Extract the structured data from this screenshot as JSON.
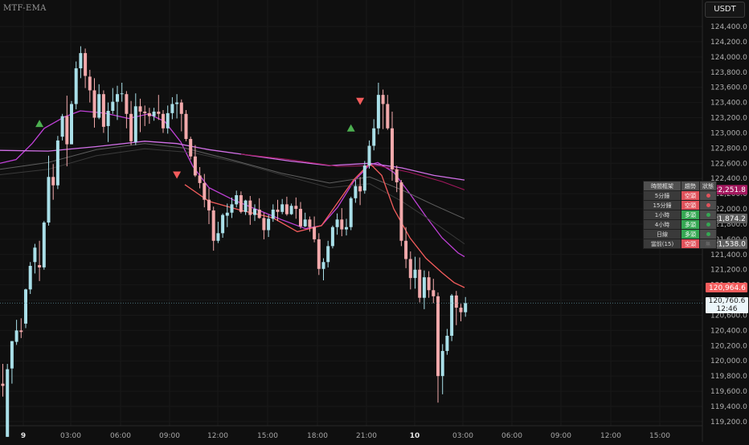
{
  "chart_data": {
    "type": "candlestick",
    "title": "MTF-EMA",
    "currency": "USDT",
    "y_ticks": [
      "124,400.0",
      "124,200.0",
      "124,000.0",
      "123,800.0",
      "123,600.0",
      "123,400.0",
      "123,200.0",
      "123,000.0",
      "122,800.0",
      "122,600.0",
      "122,400.0",
      "122,200.0",
      "122,000.0",
      "121,800.0",
      "121,600.0",
      "121,400.0",
      "121,200.0",
      "121,000.0",
      "120,800.0",
      "120,600.0",
      "120,400.0",
      "120,200.0",
      "120,000.0",
      "119,800.0",
      "119,600.0",
      "119,400.0",
      "119,200.0"
    ],
    "x_ticks": [
      "9",
      "03:00",
      "06:00",
      "09:00",
      "12:00",
      "15:00",
      "18:00",
      "21:00",
      "10",
      "03:00",
      "06:00",
      "09:00",
      "12:00",
      "15:00"
    ],
    "ylim": [
      119100,
      124550
    ],
    "last_price": "120,760.6",
    "countdown": "12:46",
    "price_labels": [
      {
        "text": "122,251.8",
        "value": 122251.8,
        "color": "#a3185e"
      },
      {
        "text": "121,874.2",
        "value": 121874.2,
        "color": "#5f5f5f"
      },
      {
        "text": "121,538.0",
        "value": 121538.0,
        "color": "#5f5f5f"
      },
      {
        "text": "120,964.6",
        "value": 120964.6,
        "color": "#f35c5c"
      }
    ],
    "ema_series": [
      {
        "color": "#bf40d6",
        "points": [
          [
            0,
            122600
          ],
          [
            20,
            122650
          ],
          [
            40,
            122860
          ],
          [
            55,
            123060
          ],
          [
            80,
            123210
          ],
          [
            100,
            123290
          ],
          [
            130,
            123260
          ],
          [
            160,
            123190
          ],
          [
            185,
            123250
          ],
          [
            205,
            123150
          ],
          [
            225,
            122880
          ],
          [
            240,
            122560
          ],
          [
            260,
            122280
          ],
          [
            290,
            122120
          ],
          [
            320,
            121990
          ],
          [
            350,
            121860
          ],
          [
            380,
            121740
          ],
          [
            400,
            121780
          ],
          [
            420,
            122020
          ],
          [
            440,
            122360
          ],
          [
            460,
            122580
          ],
          [
            470,
            122610
          ],
          [
            490,
            122480
          ],
          [
            510,
            122200
          ],
          [
            530,
            121900
          ],
          [
            550,
            121620
          ],
          [
            570,
            121420
          ],
          [
            578,
            121370
          ]
        ]
      },
      {
        "color": "#d270e8",
        "points": [
          [
            0,
            122770
          ],
          [
            60,
            122760
          ],
          [
            120,
            122820
          ],
          [
            180,
            122890
          ],
          [
            220,
            122860
          ],
          [
            260,
            122780
          ],
          [
            300,
            122720
          ],
          [
            360,
            122630
          ],
          [
            410,
            122570
          ],
          [
            460,
            122600
          ],
          [
            500,
            122540
          ],
          [
            540,
            122440
          ],
          [
            578,
            122380
          ]
        ]
      },
      {
        "color": "#a3185e",
        "points": [
          [
            300,
            122720
          ],
          [
            360,
            122650
          ],
          [
            420,
            122560
          ],
          [
            470,
            122570
          ],
          [
            510,
            122480
          ],
          [
            550,
            122360
          ],
          [
            578,
            122250
          ]
        ]
      },
      {
        "color": "#5f5f5f",
        "points": [
          [
            0,
            122520
          ],
          [
            60,
            122610
          ],
          [
            120,
            122780
          ],
          [
            180,
            122860
          ],
          [
            230,
            122800
          ],
          [
            290,
            122640
          ],
          [
            350,
            122470
          ],
          [
            410,
            122340
          ],
          [
            460,
            122420
          ],
          [
            500,
            122250
          ],
          [
            540,
            122050
          ],
          [
            578,
            121870
          ]
        ]
      },
      {
        "color": "#3a3a3a",
        "points": [
          [
            0,
            122450
          ],
          [
            60,
            122520
          ],
          [
            120,
            122700
          ],
          [
            180,
            122790
          ],
          [
            240,
            122740
          ],
          [
            300,
            122600
          ],
          [
            360,
            122420
          ],
          [
            410,
            122280
          ],
          [
            460,
            122330
          ],
          [
            500,
            122100
          ],
          [
            540,
            121820
          ],
          [
            578,
            121540
          ]
        ]
      },
      {
        "color": "#f35c5c",
        "points": [
          [
            230,
            122320
          ],
          [
            260,
            122100
          ],
          [
            300,
            121980
          ],
          [
            340,
            121880
          ],
          [
            370,
            121700
          ],
          [
            400,
            121780
          ],
          [
            420,
            122080
          ],
          [
            440,
            122380
          ],
          [
            460,
            122600
          ],
          [
            475,
            122440
          ],
          [
            490,
            122000
          ],
          [
            510,
            121620
          ],
          [
            530,
            121350
          ],
          [
            550,
            121160
          ],
          [
            565,
            121030
          ],
          [
            578,
            120965
          ]
        ]
      }
    ],
    "candles": [
      [
        119700.0,
        119960.0,
        119530.0,
        119670.0
      ],
      [
        119000.0,
        119960.0,
        119000.0,
        119890.0
      ],
      [
        119900.0,
        120260.0,
        119700.0,
        120260.0
      ],
      [
        120250.0,
        120540.0,
        120210.0,
        120400.0
      ],
      [
        120400.0,
        120560.0,
        120300.0,
        120380.0
      ],
      [
        120490.0,
        120950.0,
        120430.0,
        120940.0
      ],
      [
        120940.0,
        121300.0,
        120880.0,
        121250.0
      ],
      [
        121300.0,
        121540.0,
        121150.0,
        121490.0
      ],
      [
        121260.0,
        121580.0,
        121050.0,
        121230.0
      ],
      [
        121230.0,
        121840.0,
        121200.0,
        121820.0
      ],
      [
        121820.0,
        122700.0,
        121780.0,
        122420.0
      ],
      [
        122420.0,
        122590.0,
        122120.0,
        122310.0
      ],
      [
        122310.0,
        122960.0,
        122260.0,
        122900.0
      ],
      [
        122950.0,
        123250.0,
        122900.0,
        123220.0
      ],
      [
        123220.0,
        123490.0,
        122560.0,
        122850.0
      ],
      [
        122850.0,
        123420.0,
        122850.0,
        123380.0
      ],
      [
        123380.0,
        123940.0,
        123310.0,
        123850.0
      ],
      [
        123850.0,
        124140.0,
        123720.0,
        124050.0
      ],
      [
        124050.0,
        124110.0,
        123590.0,
        123750.0
      ],
      [
        123740.0,
        123830.0,
        123400.0,
        123560.0
      ],
      [
        123560.0,
        123720.0,
        123070.0,
        123200.0
      ],
      [
        123200.0,
        123640.0,
        123180.0,
        123510.0
      ],
      [
        123510.0,
        123560.0,
        123000.0,
        123080.0
      ],
      [
        123090.0,
        123400.0,
        122880.0,
        123290.0
      ],
      [
        123290.0,
        123590.0,
        123250.0,
        123410.0
      ],
      [
        123410.0,
        123620.0,
        123170.0,
        123510.0
      ],
      [
        123510.0,
        123660.0,
        123410.0,
        123520.0
      ],
      [
        123510.0,
        123550.0,
        123060.0,
        123250.0
      ],
      [
        123250.0,
        123420.0,
        122840.0,
        122890.0
      ],
      [
        122880.0,
        123520.0,
        122840.0,
        123350.0
      ],
      [
        123350.0,
        123450.0,
        123010.0,
        123280.0
      ],
      [
        123280.0,
        123360.0,
        123090.0,
        123260.0
      ],
      [
        123260.0,
        123330.0,
        123120.0,
        123220.0
      ],
      [
        123220.0,
        123330.0,
        123160.0,
        123280.0
      ],
      [
        123280.0,
        123500.0,
        123170.0,
        123250.0
      ],
      [
        123250.0,
        123300.0,
        123000.0,
        123060.0
      ],
      [
        123060.0,
        123360.0,
        122990.0,
        123260.0
      ],
      [
        123260.0,
        123470.0,
        123180.0,
        123380.0
      ],
      [
        123380.0,
        123510.0,
        123190.0,
        123400.0
      ],
      [
        123400.0,
        123440.0,
        123020.0,
        123250.0
      ],
      [
        123250.0,
        123300.0,
        122890.0,
        122920.0
      ],
      [
        122920.0,
        122950.0,
        122650.0,
        122690.0
      ],
      [
        122690.0,
        122840.0,
        122420.0,
        122440.0
      ],
      [
        122440.0,
        122550.0,
        122270.0,
        122340.0
      ],
      [
        122340.0,
        122460.0,
        122020.0,
        122120.0
      ],
      [
        122120.0,
        122270.0,
        121800.0,
        121980.0
      ],
      [
        121980.0,
        122030.0,
        121450.0,
        121580.0
      ],
      [
        121580.0,
        121830.0,
        121550.0,
        121680.0
      ],
      [
        121680.0,
        121940.0,
        121620.0,
        121920.0
      ],
      [
        121910.0,
        122070.0,
        121760.0,
        121950.0
      ],
      [
        121950.0,
        122150.0,
        121880.0,
        122060.0
      ],
      [
        122060.0,
        122240.0,
        122020.0,
        122180.0
      ],
      [
        122180.0,
        122230.0,
        121940.0,
        121960.0
      ],
      [
        121960.0,
        122120.0,
        121920.0,
        122110.0
      ],
      [
        122110.0,
        122170.0,
        121790.0,
        121920.0
      ],
      [
        121920.0,
        122060.0,
        121840.0,
        122000.0
      ],
      [
        121990.0,
        122140.0,
        121870.0,
        121880.0
      ],
      [
        121880.0,
        121950.0,
        121600.0,
        121720.0
      ],
      [
        121720.0,
        121920.0,
        121630.0,
        121870.0
      ],
      [
        121870.0,
        122060.0,
        121830.0,
        121990.0
      ],
      [
        121990.0,
        122120.0,
        121840.0,
        121960.0
      ],
      [
        121960.0,
        122130.0,
        121930.0,
        122060.0
      ],
      [
        122060.0,
        122160.0,
        121910.0,
        121930.0
      ],
      [
        121930.0,
        122070.0,
        121920.0,
        122040.0
      ],
      [
        122040.0,
        122150.0,
        121870.0,
        122000.0
      ],
      [
        122000.0,
        122090.0,
        121740.0,
        121770.0
      ],
      [
        121770.0,
        121950.0,
        121760.0,
        121860.0
      ],
      [
        121860.0,
        121900.0,
        121700.0,
        121760.0
      ],
      [
        121760.0,
        121900.0,
        121560.0,
        121600.0
      ],
      [
        121600.0,
        121680.0,
        121130.0,
        121210.0
      ],
      [
        121210.0,
        121350.0,
        121060.0,
        121300.0
      ],
      [
        121300.0,
        121580.0,
        121230.0,
        121510.0
      ],
      [
        121510.0,
        121780.0,
        121480.0,
        121760.0
      ],
      [
        121760.0,
        121940.0,
        121660.0,
        121860.0
      ],
      [
        121860.0,
        122010.0,
        121640.0,
        121730.0
      ],
      [
        121730.0,
        121870.0,
        121650.0,
        121760.0
      ],
      [
        121760.0,
        122160.0,
        121720.0,
        122140.0
      ],
      [
        122140.0,
        122380.0,
        122080.0,
        122300.0
      ],
      [
        122300.0,
        122420.0,
        122050.0,
        122230.0
      ],
      [
        122240.0,
        122630.0,
        122200.0,
        122570.0
      ],
      [
        122570.0,
        122900.0,
        122530.0,
        122830.0
      ],
      [
        122830.0,
        123180.0,
        122770.0,
        123060.0
      ],
      [
        123060.0,
        123660.0,
        122980.0,
        123500.0
      ],
      [
        123500.0,
        123570.0,
        123050.0,
        123380.0
      ],
      [
        123380.0,
        123500.0,
        123040.0,
        123060.0
      ],
      [
        123060.0,
        123280.0,
        122370.0,
        122520.0
      ],
      [
        122520.0,
        122570.0,
        122220.0,
        122350.0
      ],
      [
        122350.0,
        122380.0,
        121510.0,
        121580.0
      ],
      [
        121580.0,
        121760.0,
        121220.0,
        121340.0
      ],
      [
        121340.0,
        121440.0,
        120940.0,
        121090.0
      ],
      [
        121090.0,
        121370.0,
        120950.0,
        121200.0
      ],
      [
        121200.0,
        121360.0,
        120770.0,
        120830.0
      ],
      [
        120830.0,
        121190.0,
        120680.0,
        121100.0
      ],
      [
        121100.0,
        121180.0,
        120830.0,
        120930.0
      ],
      [
        120930.0,
        121080.0,
        120760.0,
        120850.0
      ],
      [
        120850.0,
        120900.0,
        119450.0,
        119800.0
      ],
      [
        119800.0,
        120220.0,
        119560.0,
        120130.0
      ],
      [
        120130.0,
        120420.0,
        120080.0,
        120330.0
      ],
      [
        120330.0,
        120880.0,
        120260.0,
        120860.0
      ],
      [
        120860.0,
        120920.0,
        120470.0,
        120700.0
      ],
      [
        120700.0,
        120750.0,
        120520.0,
        120640.0
      ],
      [
        120640.0,
        120840.0,
        120580.0,
        120760.6
      ]
    ],
    "markers": [
      {
        "type": "buy",
        "candle": 8,
        "price": 123120,
        "color": "#4caf50"
      },
      {
        "type": "sell",
        "candle": 38,
        "price": 122450,
        "color": "#f35c5c"
      },
      {
        "type": "buy",
        "candle": 76,
        "price": 123060,
        "color": "#4caf50"
      },
      {
        "type": "sell",
        "candle": 78,
        "price": 123420,
        "color": "#f35c5c"
      }
    ]
  },
  "trend_table": {
    "headers": [
      "時間框架",
      "趨勢",
      "狀態"
    ],
    "rows": [
      {
        "tf": "5分鐘",
        "trend": "空頭",
        "trend_color": "#e0525b",
        "status_color": "#e0525b"
      },
      {
        "tf": "15分鐘",
        "trend": "空頭",
        "trend_color": "#e0525b",
        "status_color": "#e0525b"
      },
      {
        "tf": "1小時",
        "trend": "多頭",
        "trend_color": "#35a853",
        "status_color": "#35a853"
      },
      {
        "tf": "4小時",
        "trend": "多頭",
        "trend_color": "#35a853",
        "status_color": "#35a853"
      },
      {
        "tf": "日線",
        "trend": "多頭",
        "trend_color": "#35a853",
        "status_color": "#35a853"
      },
      {
        "tf": "當前(15)",
        "trend": "空頭",
        "trend_color": "#e0525b",
        "status": "無"
      }
    ]
  },
  "colors": {
    "up": "#a9dfe8",
    "down": "#f2a9ab",
    "grid": "#1a1a1a",
    "background": "#0f0f0f"
  }
}
